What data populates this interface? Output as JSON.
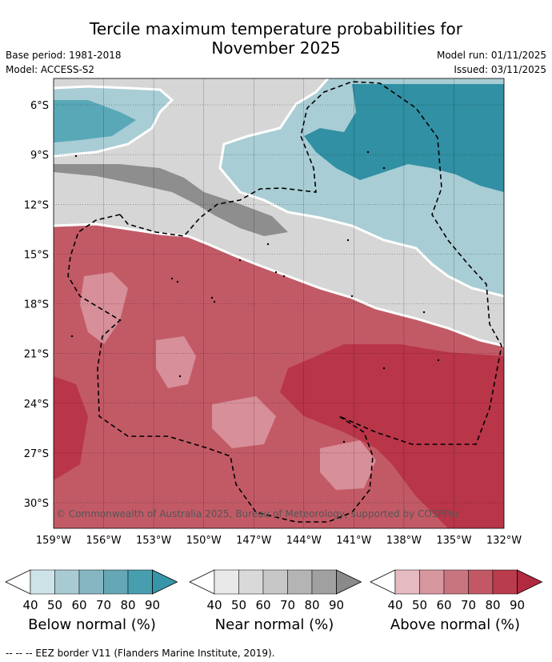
{
  "title_line1": "Tercile maximum temperature probabilities for",
  "title_line2": "November 2025",
  "base_period": "Base period: 1981-2018",
  "model": "Model: ACCESS-S2",
  "model_run": "Model run: 01/11/2025",
  "issued": "Issued: 03/11/2025",
  "copyright": "© Commonwealth of Australia 2025, Bureau of Meteorology, supported by COSPPac",
  "footnote": "--  --  -- EEZ border V11 (Flanders Marine Institute, 2019).",
  "lat_labels": [
    "6°S",
    "9°S",
    "12°S",
    "15°S",
    "18°S",
    "21°S",
    "24°S",
    "27°S",
    "30°S"
  ],
  "lon_labels": [
    "159°W",
    "156°W",
    "153°W",
    "150°W",
    "147°W",
    "144°W",
    "141°W",
    "138°W",
    "135°W",
    "132°W"
  ],
  "colorbars": [
    {
      "name": "below",
      "title": "Below normal (%)",
      "ticks": [
        "40",
        "50",
        "60",
        "70",
        "80",
        "90"
      ],
      "colors": [
        "#cde3e8",
        "#a8cad3",
        "#86b6c2",
        "#66a7b6",
        "#479eae",
        "#3696a8"
      ]
    },
    {
      "name": "near",
      "title": "Near normal (%)",
      "ticks": [
        "40",
        "50",
        "60",
        "70",
        "80",
        "90"
      ],
      "colors": [
        "#e9e9e9",
        "#d9d9d9",
        "#c7c7c7",
        "#b4b4b4",
        "#a0a0a0",
        "#8a8a8a"
      ]
    },
    {
      "name": "above",
      "title": "Above normal (%)",
      "ticks": [
        "40",
        "50",
        "60",
        "70",
        "80",
        "90"
      ],
      "colors": [
        "#e5bac0",
        "#d6979f",
        "#c97580",
        "#c15864",
        "#b93c4c",
        "#b22a40"
      ]
    }
  ],
  "colors": {
    "above_dark": "#b93548",
    "above_mid": "#c25a66",
    "above_light": "#d78f99",
    "near_light": "#d6d6d6",
    "near_mid": "#b2b2b2",
    "near_dark": "#8e8e8e",
    "below_dark": "#3190a3",
    "below_mid": "#59a8b8",
    "below_light": "#a9cdd5"
  }
}
